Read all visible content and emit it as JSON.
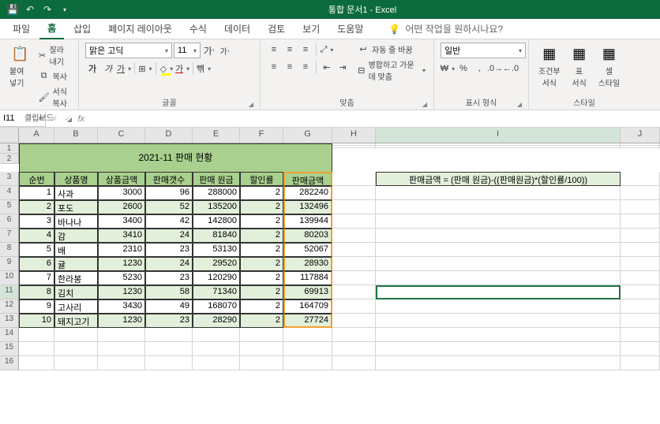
{
  "app": {
    "title": "통합 문서1 - Excel"
  },
  "tabs": {
    "file": "파일",
    "home": "홈",
    "insert": "삽입",
    "pageLayout": "페이지 레이아웃",
    "formulas": "수식",
    "data": "데이터",
    "review": "검토",
    "view": "보기",
    "help": "도움말",
    "tellme": "어떤 작업을 원하시나요?"
  },
  "ribbon": {
    "clipboard": {
      "paste": "붙여넣기",
      "cut": "잘라내기",
      "copy": "복사",
      "formatPainter": "서식 복사",
      "label": "클립보드"
    },
    "font": {
      "name": "맑은 고딕",
      "size": "11",
      "label": "글꼴",
      "bold": "가",
      "italic": "가",
      "underline": "가"
    },
    "align": {
      "wrap": "자동 줄 바꿈",
      "merge": "병합하고 가운데 맞춤",
      "label": "맞춤"
    },
    "number": {
      "format": "일반",
      "label": "표시 형식"
    },
    "styles": {
      "cond": "조건부\n서식",
      "table": "표\n서식",
      "cell": "셀\n스타일",
      "label": "스타일"
    }
  },
  "namebox": "I11",
  "sheetTitle": "2021-11 판매 현황",
  "headers": [
    "순번",
    "상품명",
    "상품금액",
    "판매갯수",
    "판매 원금",
    "할인률",
    "판매금액"
  ],
  "formula": "판매금액 = (판매 원금)-((판매원금)*(할인률/100))",
  "rows": [
    {
      "n": 1,
      "name": "사과",
      "price": 3000,
      "qty": 96,
      "orig": 288000,
      "disc": 2,
      "sale": 282240
    },
    {
      "n": 2,
      "name": "포도",
      "price": 2600,
      "qty": 52,
      "orig": 135200,
      "disc": 2,
      "sale": 132496
    },
    {
      "n": 3,
      "name": "바나나",
      "price": 3400,
      "qty": 42,
      "orig": 142800,
      "disc": 2,
      "sale": 139944
    },
    {
      "n": 4,
      "name": "감",
      "price": 3410,
      "qty": 24,
      "orig": 81840,
      "disc": 2,
      "sale": 80203
    },
    {
      "n": 5,
      "name": "배",
      "price": 2310,
      "qty": 23,
      "orig": 53130,
      "disc": 2,
      "sale": 52067
    },
    {
      "n": 6,
      "name": "귤",
      "price": 1230,
      "qty": 24,
      "orig": 29520,
      "disc": 2,
      "sale": 28930
    },
    {
      "n": 7,
      "name": "한라봉",
      "price": 5230,
      "qty": 23,
      "orig": 120290,
      "disc": 2,
      "sale": 117884
    },
    {
      "n": 8,
      "name": "김치",
      "price": 1230,
      "qty": 58,
      "orig": 71340,
      "disc": 2,
      "sale": 69913
    },
    {
      "n": 9,
      "name": "고사리",
      "price": 3430,
      "qty": 49,
      "orig": 168070,
      "disc": 2,
      "sale": 164709
    },
    {
      "n": 10,
      "name": "돼지고기",
      "price": 1230,
      "qty": 23,
      "orig": 28290,
      "disc": 2,
      "sale": 27724
    }
  ],
  "colors": {
    "titlebar": "#0c6b3d",
    "headerFill": "#a9d08e",
    "altFill": "#e2efda",
    "saleBorder": "#f0a030",
    "selection": "#217346"
  }
}
